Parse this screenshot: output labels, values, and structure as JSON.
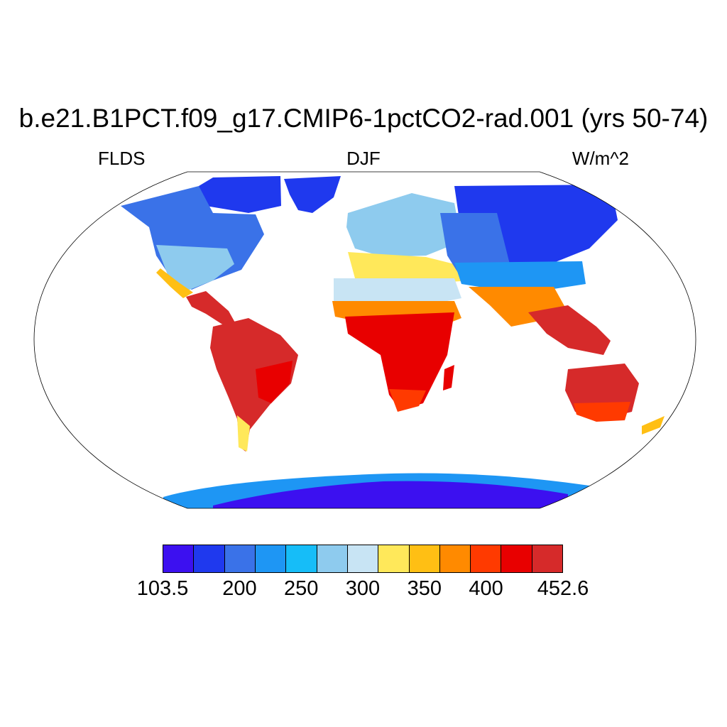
{
  "title": "b.e21.B1PCT.f09_g17.CMIP6-1pctCO2-rad.001 (yrs 50-74)",
  "left_string": "FLDS",
  "center_string": "DJF",
  "right_string": "W/m^2",
  "colorbar": {
    "colors": [
      "#3c10f0",
      "#1f39ee",
      "#3a72e8",
      "#1e96f4",
      "#16bdf8",
      "#8ecbee",
      "#c8e4f4",
      "#ffe85a",
      "#ffbf14",
      "#ff8a00",
      "#ff3a00",
      "#e80000",
      "#d62a2a"
    ],
    "labels": [
      {
        "text": "103.5",
        "boundary": 0
      },
      {
        "text": "200",
        "boundary": 2.5
      },
      {
        "text": "250",
        "boundary": 4.5
      },
      {
        "text": "300",
        "boundary": 6.5
      },
      {
        "text": "350",
        "boundary": 8.5
      },
      {
        "text": "400",
        "boundary": 10.5
      },
      {
        "text": "452.6",
        "boundary": 13
      }
    ]
  }
}
